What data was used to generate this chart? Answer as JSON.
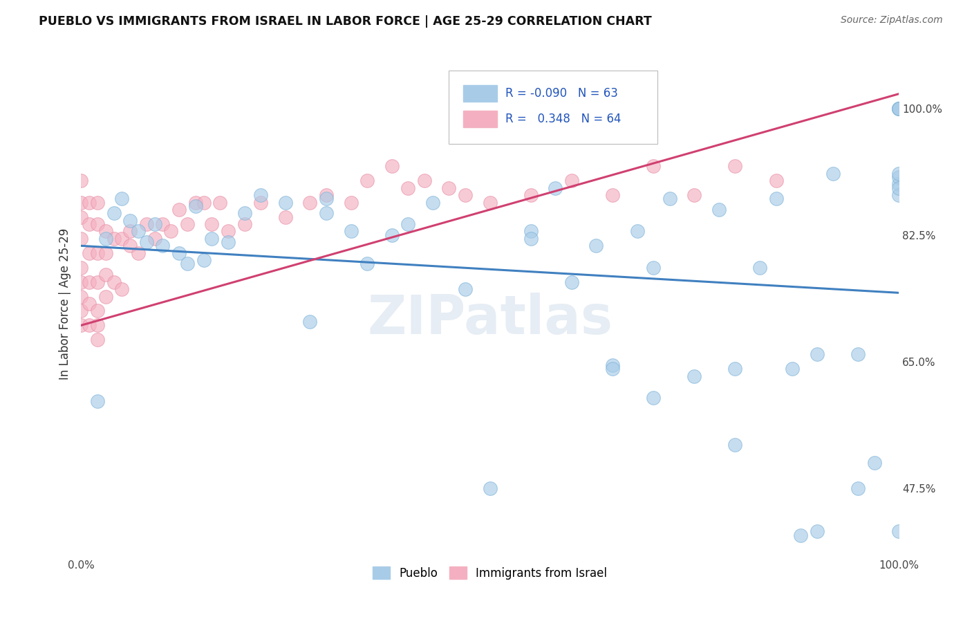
{
  "title": "PUEBLO VS IMMIGRANTS FROM ISRAEL IN LABOR FORCE | AGE 25-29 CORRELATION CHART",
  "source": "Source: ZipAtlas.com",
  "ylabel": "In Labor Force | Age 25-29",
  "y_tick_labels": [
    "47.5%",
    "65.0%",
    "82.5%",
    "100.0%"
  ],
  "y_tick_values": [
    0.475,
    0.65,
    0.825,
    1.0
  ],
  "x_range": [
    0.0,
    1.0
  ],
  "y_range": [
    0.38,
    1.08
  ],
  "legend_r_blue": "-0.090",
  "legend_n_blue": "63",
  "legend_r_pink": "0.348",
  "legend_n_pink": "64",
  "blue_color": "#a8cce8",
  "pink_color": "#f4b0c0",
  "blue_edge_color": "#7eb3d8",
  "pink_edge_color": "#e890a8",
  "blue_line_color": "#4080c0",
  "pink_line_color": "#d04070",
  "watermark": "ZIPatlas",
  "legend_label_blue": "Pueblo",
  "legend_label_pink": "Immigrants from Israel",
  "blue_scatter_x": [
    0.02,
    0.03,
    0.04,
    0.05,
    0.06,
    0.07,
    0.08,
    0.09,
    0.1,
    0.12,
    0.13,
    0.14,
    0.15,
    0.16,
    0.18,
    0.2,
    0.22,
    0.25,
    0.28,
    0.3,
    0.35,
    0.38,
    0.4,
    0.43,
    0.47,
    0.5,
    0.55,
    0.6,
    0.63,
    0.65,
    0.68,
    0.7,
    0.72,
    0.75,
    0.78,
    0.8,
    0.83,
    0.85,
    0.87,
    0.9,
    0.92,
    0.95,
    0.97,
    1.0,
    1.0,
    1.0,
    1.0,
    1.0,
    1.0,
    1.0,
    1.0,
    1.0,
    0.3,
    0.33,
    0.55,
    0.58,
    0.65,
    0.7,
    0.8,
    0.88,
    0.9,
    0.95,
    1.0
  ],
  "blue_scatter_y": [
    0.595,
    0.82,
    0.855,
    0.875,
    0.845,
    0.83,
    0.815,
    0.84,
    0.81,
    0.8,
    0.785,
    0.865,
    0.79,
    0.82,
    0.815,
    0.855,
    0.88,
    0.87,
    0.705,
    0.875,
    0.785,
    0.825,
    0.84,
    0.87,
    0.75,
    0.475,
    0.83,
    0.76,
    0.81,
    0.645,
    0.83,
    0.78,
    0.875,
    0.63,
    0.86,
    0.64,
    0.78,
    0.875,
    0.64,
    0.66,
    0.91,
    0.66,
    0.51,
    1.0,
    1.0,
    1.0,
    0.895,
    0.905,
    0.88,
    0.89,
    0.91,
    1.0,
    0.855,
    0.83,
    0.82,
    0.89,
    0.64,
    0.6,
    0.535,
    0.41,
    0.415,
    0.475,
    0.415
  ],
  "pink_scatter_x": [
    0.0,
    0.0,
    0.0,
    0.0,
    0.0,
    0.0,
    0.0,
    0.0,
    0.0,
    0.01,
    0.01,
    0.01,
    0.01,
    0.01,
    0.01,
    0.02,
    0.02,
    0.02,
    0.02,
    0.02,
    0.02,
    0.02,
    0.03,
    0.03,
    0.03,
    0.03,
    0.04,
    0.04,
    0.05,
    0.05,
    0.06,
    0.06,
    0.07,
    0.08,
    0.09,
    0.1,
    0.11,
    0.12,
    0.13,
    0.14,
    0.15,
    0.16,
    0.17,
    0.18,
    0.2,
    0.22,
    0.25,
    0.28,
    0.3,
    0.33,
    0.35,
    0.38,
    0.4,
    0.42,
    0.45,
    0.47,
    0.5,
    0.55,
    0.6,
    0.65,
    0.7,
    0.75,
    0.8,
    0.85
  ],
  "pink_scatter_y": [
    0.7,
    0.72,
    0.74,
    0.76,
    0.78,
    0.82,
    0.85,
    0.87,
    0.9,
    0.7,
    0.73,
    0.76,
    0.8,
    0.84,
    0.87,
    0.68,
    0.7,
    0.72,
    0.76,
    0.8,
    0.84,
    0.87,
    0.74,
    0.77,
    0.8,
    0.83,
    0.76,
    0.82,
    0.75,
    0.82,
    0.83,
    0.81,
    0.8,
    0.84,
    0.82,
    0.84,
    0.83,
    0.86,
    0.84,
    0.87,
    0.87,
    0.84,
    0.87,
    0.83,
    0.84,
    0.87,
    0.85,
    0.87,
    0.88,
    0.87,
    0.9,
    0.92,
    0.89,
    0.9,
    0.89,
    0.88,
    0.87,
    0.88,
    0.9,
    0.88,
    0.92,
    0.88,
    0.92,
    0.9
  ],
  "blue_trend_x": [
    0.0,
    1.0
  ],
  "blue_trend_y": [
    0.81,
    0.745
  ],
  "pink_trend_x": [
    0.0,
    1.0
  ],
  "pink_trend_y": [
    0.7,
    1.02
  ]
}
